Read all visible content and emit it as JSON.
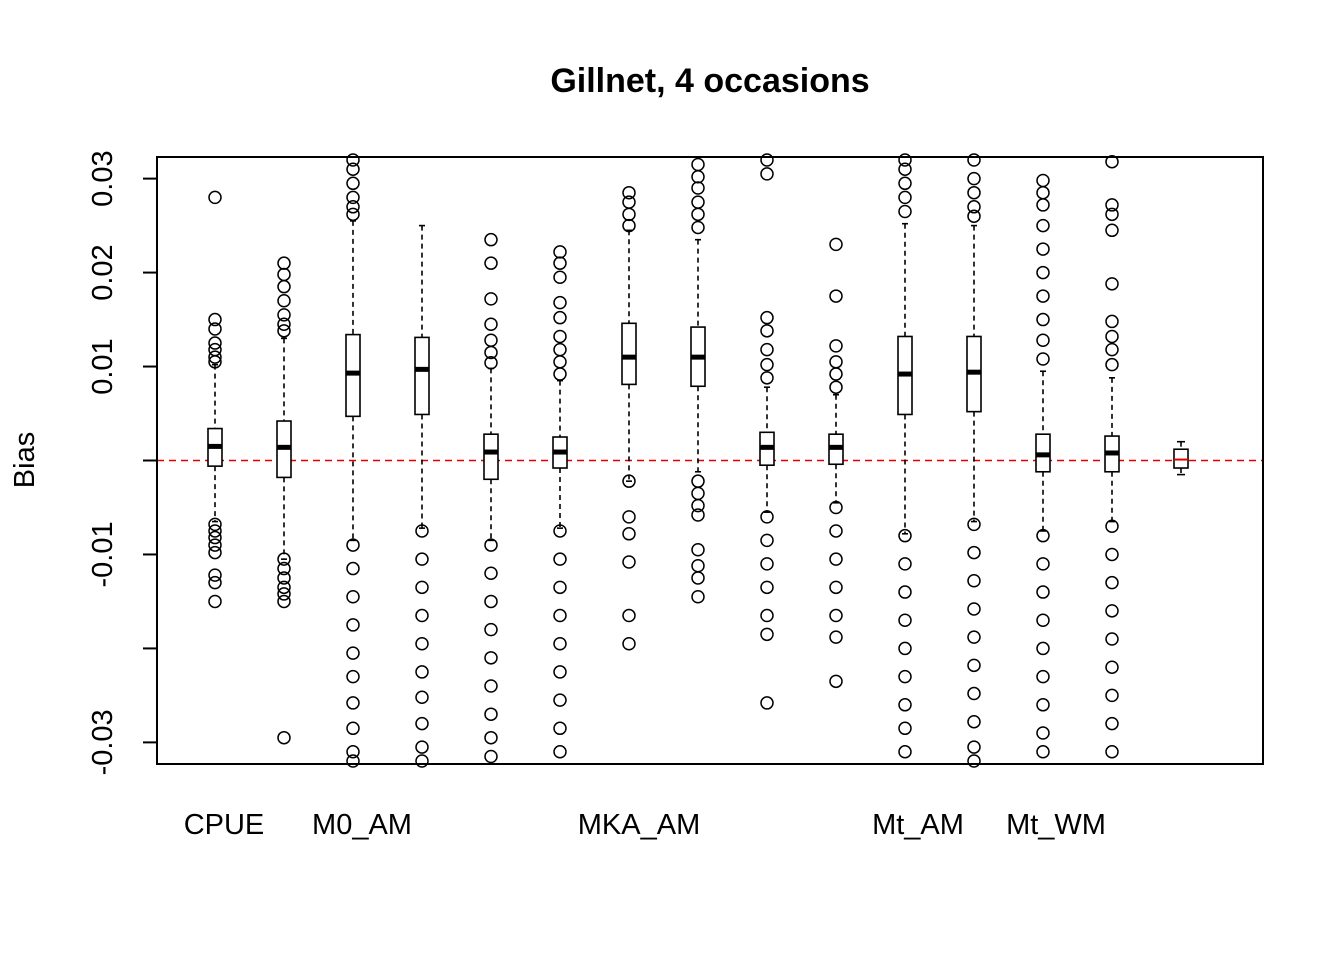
{
  "chart_data": {
    "type": "boxplot",
    "title": "Gillnet, 4 occasions",
    "ylabel": "Bias",
    "xlabel": "",
    "ylim": [
      -0.0323,
      0.0323
    ],
    "yticks": [
      0.03,
      0.02,
      0.01,
      -0.01,
      -0.03
    ],
    "ytick_labels": [
      "0.03",
      "0.02",
      "0.01",
      "-0.01",
      "-0.03"
    ],
    "unlabeled_ytick_values": [
      0.0,
      -0.02
    ],
    "reference_line": {
      "y": 0,
      "style": "dashed",
      "color": "#e00000"
    },
    "category_labels": [
      "CPUE",
      "M0_AM",
      "MKA_AM",
      "Mt_AM",
      "Mt_WM"
    ],
    "colors": {
      "reference": "#e00000",
      "box_fill": "#ffffff",
      "stroke": "#000000"
    },
    "boxes": [
      {
        "group": "CPUE",
        "pos": 1,
        "q1": -0.0006,
        "median": 0.0015,
        "q3": 0.0034,
        "whisker_low": -0.0065,
        "whisker_high": 0.0102,
        "outliers": [
          0.028,
          0.015,
          0.014,
          0.0125,
          0.0118,
          0.011,
          0.0105,
          -0.0068,
          -0.0075,
          -0.0082,
          -0.009,
          -0.0098,
          -0.0122,
          -0.013,
          -0.015
        ]
      },
      {
        "group": "CPUE",
        "pos": 2,
        "q1": -0.0018,
        "median": 0.0014,
        "q3": 0.0042,
        "whisker_low": -0.0105,
        "whisker_high": 0.013,
        "outliers": [
          0.021,
          0.0198,
          0.0185,
          0.017,
          0.0155,
          0.0145,
          0.0138,
          -0.0105,
          -0.0115,
          -0.0125,
          -0.0135,
          -0.0142,
          -0.015,
          -0.0295
        ]
      },
      {
        "group": "M0_AM",
        "pos": 3,
        "q1": 0.0047,
        "median": 0.0093,
        "q3": 0.0134,
        "whisker_low": -0.0085,
        "whisker_high": 0.0255,
        "outliers": [
          0.0323,
          0.031,
          0.0295,
          0.028,
          0.027,
          0.0262,
          -0.009,
          -0.0115,
          -0.0145,
          -0.0175,
          -0.0205,
          -0.023,
          -0.0258,
          -0.0285,
          -0.031,
          -0.032
        ]
      },
      {
        "group": "M0_AM",
        "pos": 4,
        "q1": 0.0049,
        "median": 0.0097,
        "q3": 0.0131,
        "whisker_low": -0.0072,
        "whisker_high": 0.025,
        "outliers": [
          -0.0075,
          -0.0105,
          -0.0135,
          -0.0165,
          -0.0195,
          -0.0225,
          -0.0252,
          -0.028,
          -0.0305,
          -0.032
        ]
      },
      {
        "group": "",
        "pos": 5,
        "q1": -0.002,
        "median": 0.0009,
        "q3": 0.0028,
        "whisker_low": -0.0085,
        "whisker_high": 0.0098,
        "outliers": [
          0.0235,
          0.021,
          0.0172,
          0.0145,
          0.0128,
          0.0115,
          0.0104,
          -0.009,
          -0.012,
          -0.015,
          -0.018,
          -0.021,
          -0.024,
          -0.027,
          -0.0295,
          -0.0315
        ]
      },
      {
        "group": "",
        "pos": 6,
        "q1": -0.0008,
        "median": 0.0009,
        "q3": 0.0025,
        "whisker_low": -0.0072,
        "whisker_high": 0.0085,
        "outliers": [
          0.0222,
          0.021,
          0.0195,
          0.0168,
          0.0152,
          0.0132,
          0.0118,
          0.0105,
          0.0092,
          -0.0075,
          -0.0105,
          -0.0135,
          -0.0165,
          -0.0195,
          -0.0225,
          -0.0255,
          -0.0285,
          -0.031
        ]
      },
      {
        "group": "MKA_AM",
        "pos": 7,
        "q1": 0.0081,
        "median": 0.011,
        "q3": 0.0146,
        "whisker_low": -0.0022,
        "whisker_high": 0.0245,
        "outliers": [
          0.0285,
          0.0275,
          0.0262,
          0.025,
          -0.0022,
          -0.006,
          -0.0078,
          -0.0108,
          -0.0165,
          -0.0195
        ]
      },
      {
        "group": "MKA_AM",
        "pos": 8,
        "q1": 0.0079,
        "median": 0.011,
        "q3": 0.0142,
        "whisker_low": -0.0012,
        "whisker_high": 0.0235,
        "outliers": [
          0.0315,
          0.0302,
          0.029,
          0.0275,
          0.0262,
          0.0248,
          -0.0022,
          -0.0035,
          -0.0048,
          -0.0058,
          -0.0095,
          -0.0112,
          -0.0125,
          -0.0145
        ]
      },
      {
        "group": "",
        "pos": 9,
        "q1": -0.0005,
        "median": 0.0014,
        "q3": 0.003,
        "whisker_low": -0.0055,
        "whisker_high": 0.0078,
        "outliers": [
          0.0323,
          0.0305,
          0.0152,
          0.0138,
          0.0118,
          0.0102,
          0.0088,
          -0.006,
          -0.0085,
          -0.011,
          -0.0135,
          -0.0165,
          -0.0185,
          -0.0258
        ]
      },
      {
        "group": "",
        "pos": 10,
        "q1": -0.0004,
        "median": 0.0014,
        "q3": 0.0028,
        "whisker_low": -0.0045,
        "whisker_high": 0.007,
        "outliers": [
          0.023,
          0.0175,
          0.0122,
          0.0105,
          0.0092,
          0.0078,
          -0.005,
          -0.0075,
          -0.0105,
          -0.0135,
          -0.0165,
          -0.0188,
          -0.0235
        ]
      },
      {
        "group": "Mt_AM",
        "pos": 11,
        "q1": 0.0049,
        "median": 0.0092,
        "q3": 0.0132,
        "whisker_low": -0.0078,
        "whisker_high": 0.0252,
        "outliers": [
          0.0323,
          0.031,
          0.0295,
          0.028,
          0.0265,
          -0.008,
          -0.011,
          -0.014,
          -0.017,
          -0.02,
          -0.023,
          -0.026,
          -0.0285,
          -0.031
        ]
      },
      {
        "group": "Mt_AM",
        "pos": 12,
        "q1": 0.0052,
        "median": 0.0094,
        "q3": 0.0132,
        "whisker_low": -0.0065,
        "whisker_high": 0.025,
        "outliers": [
          0.0323,
          0.03,
          0.0285,
          0.027,
          0.026,
          -0.0068,
          -0.0098,
          -0.0128,
          -0.0158,
          -0.0188,
          -0.0218,
          -0.0248,
          -0.0278,
          -0.0305,
          -0.032
        ]
      },
      {
        "group": "Mt_WM",
        "pos": 13,
        "q1": -0.0012,
        "median": 0.0006,
        "q3": 0.0028,
        "whisker_low": -0.0075,
        "whisker_high": 0.0095,
        "outliers": [
          0.0298,
          0.0285,
          0.0272,
          0.025,
          0.0225,
          0.02,
          0.0175,
          0.015,
          0.0128,
          0.0108,
          -0.008,
          -0.011,
          -0.014,
          -0.017,
          -0.02,
          -0.023,
          -0.026,
          -0.029,
          -0.031
        ]
      },
      {
        "group": "Mt_WM",
        "pos": 14,
        "q1": -0.0012,
        "median": 0.0008,
        "q3": 0.0026,
        "whisker_low": -0.0065,
        "whisker_high": 0.0088,
        "outliers": [
          0.0318,
          0.0272,
          0.0262,
          0.0245,
          0.0188,
          0.0148,
          0.0132,
          0.0118,
          0.0102,
          -0.007,
          -0.01,
          -0.013,
          -0.016,
          -0.019,
          -0.022,
          -0.025,
          -0.028,
          -0.031
        ]
      },
      {
        "group": "",
        "pos": 15,
        "q1": -0.0008,
        "median": 0.0001,
        "q3": 0.0012,
        "whisker_low": -0.0015,
        "whisker_high": 0.002,
        "outliers": []
      }
    ]
  }
}
